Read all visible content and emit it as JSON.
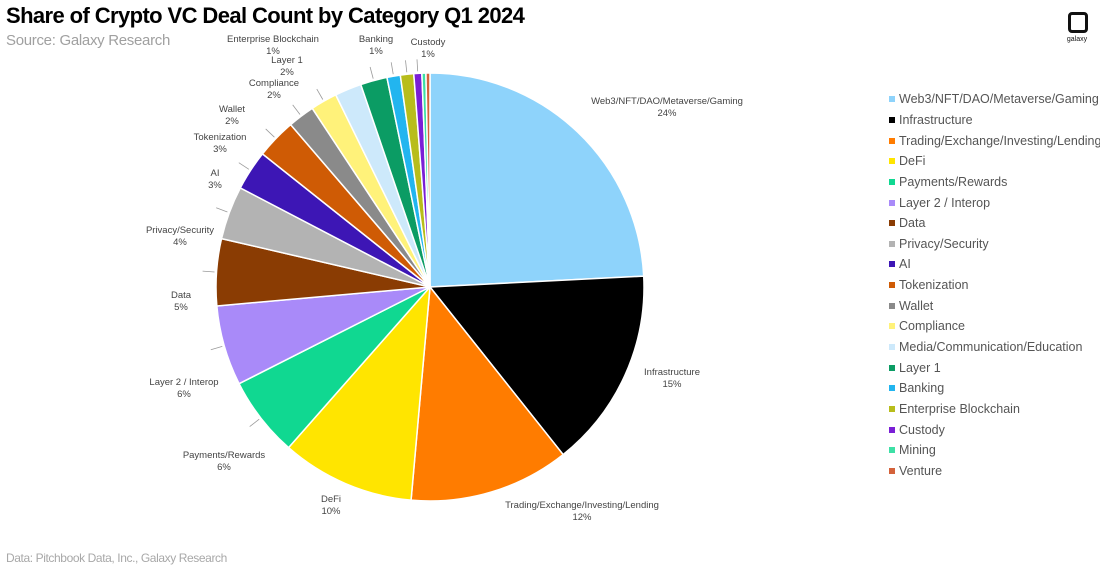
{
  "title": "Share of Crypto VC Deal Count by Category Q1 2024",
  "subtitle": "Source: Galaxy Research",
  "footnote": "Data: Pitchbook Data, Inc., Galaxy Research",
  "logo_text": "galaxy",
  "chart_data": {
    "type": "pie",
    "title": "Share of Crypto VC Deal Count by Category Q1 2024",
    "legend_position": "right",
    "slices": [
      {
        "name": "Web3/NFT/DAO/Metaverse/Gaming",
        "value": 24,
        "label": "24%",
        "color": "#8ed3fb",
        "label_lines": [
          "Web3/NFT/DAO/Metaverse/Gaming",
          "24%"
        ]
      },
      {
        "name": "Infrastructure",
        "value": 15,
        "label": "15%",
        "color": "#000000",
        "label_lines": [
          "Infrastructure",
          "15%"
        ]
      },
      {
        "name": "Trading/Exchange/Investing/Lending",
        "value": 12,
        "label": "12%",
        "color": "#ff7c00",
        "label_lines": [
          "Trading/Exchange/Investing/Lending",
          "12%"
        ]
      },
      {
        "name": "DeFi",
        "value": 10,
        "label": "10%",
        "color": "#ffe500",
        "label_lines": [
          "DeFi",
          "10%"
        ]
      },
      {
        "name": "Payments/Rewards",
        "value": 6,
        "label": "6%",
        "color": "#10d891",
        "label_lines": [
          "Payments/Rewards",
          "6%"
        ]
      },
      {
        "name": "Layer 2 / Interop",
        "value": 6,
        "label": "6%",
        "color": "#a98af9",
        "label_lines": [
          "Layer 2 / Interop",
          "6%"
        ]
      },
      {
        "name": "Data",
        "value": 5,
        "label": "5%",
        "color": "#8a3c03",
        "label_lines": [
          "Data",
          "5%"
        ]
      },
      {
        "name": "Privacy/Security",
        "value": 4,
        "label": "4%",
        "color": "#b3b3b3",
        "label_lines": [
          "Privacy/Security",
          "4%"
        ]
      },
      {
        "name": "AI",
        "value": 3,
        "label": "3%",
        "color": "#3d16b5",
        "label_lines": [
          "AI",
          "3%"
        ]
      },
      {
        "name": "Tokenization",
        "value": 3,
        "label": "3%",
        "color": "#cf5b05",
        "label_lines": [
          "Tokenization",
          "3%"
        ]
      },
      {
        "name": "Wallet",
        "value": 2,
        "label": "2%",
        "color": "#8a8a8a",
        "label_lines": [
          "Wallet",
          "2%"
        ]
      },
      {
        "name": "Compliance",
        "value": 2,
        "label": "2%",
        "color": "#fff27a",
        "label_lines": [
          "Compliance",
          "2%"
        ]
      },
      {
        "name": "Media/Communication/Education",
        "value": 2,
        "label": "",
        "color": "#cde9fb",
        "label_lines": []
      },
      {
        "name": "Layer 1",
        "value": 2,
        "label": "2%",
        "color": "#0b9c64",
        "label_lines": [
          "Layer 1",
          "2%"
        ]
      },
      {
        "name": "Banking",
        "value": 1,
        "label": "1%",
        "color": "#22b5ef",
        "label_lines": [
          "Banking",
          "1%"
        ]
      },
      {
        "name": "Enterprise Blockchain",
        "value": 1,
        "label": "1%",
        "color": "#b8bd1b",
        "label_lines": [
          "Enterprise Blockchain",
          "1%"
        ]
      },
      {
        "name": "Custody",
        "value": 0.6,
        "label": "1%",
        "color": "#7a1fd6",
        "label_lines": [
          "Custody",
          "1%"
        ]
      },
      {
        "name": "Mining",
        "value": 0.3,
        "label": "",
        "color": "#3de0a6",
        "label_lines": []
      },
      {
        "name": "Venture",
        "value": 0.3,
        "label": "",
        "color": "#d4623a",
        "label_lines": []
      }
    ]
  }
}
